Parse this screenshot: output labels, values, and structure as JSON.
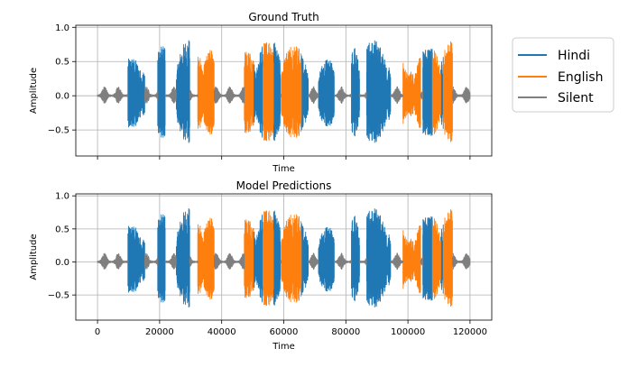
{
  "chart_data": [
    {
      "type": "line",
      "title": "Ground Truth",
      "xlabel": "Time",
      "ylabel": "Amplitude",
      "xlim": [
        -7000,
        127000
      ],
      "ylim": [
        -0.88,
        1.03
      ],
      "xticks": [
        0,
        20000,
        40000,
        60000,
        80000,
        100000,
        120000
      ],
      "xtick_labels_shown": false,
      "yticks": [
        1.0,
        0.5,
        0.0,
        -0.5
      ],
      "ytick_labels": [
        "1.0",
        "0.5",
        "0.0",
        "−0.5"
      ],
      "grid": true,
      "series": [
        {
          "name": "Hindi",
          "color": "#1f77b4",
          "segments": [
            [
              9800,
              15200
            ],
            [
              19400,
              21800
            ],
            [
              25400,
              29700
            ],
            [
              50200,
              53300
            ],
            [
              56700,
              58900
            ],
            [
              65700,
              67900
            ],
            [
              71200,
              76300
            ],
            [
              81800,
              84400
            ],
            [
              86700,
              94400
            ],
            [
              104800,
              107900
            ],
            [
              110600,
              111400
            ]
          ]
        },
        {
          "name": "English",
          "color": "#ff7f0e",
          "segments": [
            [
              32300,
              37600
            ],
            [
              47300,
              50200
            ],
            [
              53300,
              56700
            ],
            [
              59200,
              65700
            ],
            [
              98400,
              104100
            ],
            [
              107900,
              110600
            ],
            [
              111400,
              114400
            ]
          ]
        },
        {
          "name": "Silent",
          "color": "#7f7f7f",
          "segments": [
            [
              0,
              9800
            ],
            [
              15200,
              19400
            ],
            [
              21800,
              25400
            ],
            [
              29700,
              32300
            ],
            [
              37600,
              47300
            ],
            [
              58900,
              59200
            ],
            [
              67900,
              71200
            ],
            [
              76300,
              81800
            ],
            [
              84400,
              86700
            ],
            [
              94400,
              98400
            ],
            [
              104100,
              104800
            ],
            [
              114400,
              120000
            ]
          ]
        }
      ]
    },
    {
      "type": "line",
      "title": "Model Predictions",
      "xlabel": "Time",
      "ylabel": "Amplitude",
      "xlim": [
        -7000,
        127000
      ],
      "ylim": [
        -0.88,
        1.03
      ],
      "xticks": [
        0,
        20000,
        40000,
        60000,
        80000,
        100000,
        120000
      ],
      "xtick_labels": [
        "0",
        "20000",
        "40000",
        "60000",
        "80000",
        "100000",
        "120000"
      ],
      "yticks": [
        1.0,
        0.5,
        0.0,
        -0.5
      ],
      "ytick_labels": [
        "1.0",
        "0.5",
        "0.0",
        "−0.5"
      ],
      "grid": true,
      "series": [
        {
          "name": "Hindi",
          "color": "#1f77b4",
          "segments": [
            [
              9800,
              15200
            ],
            [
              19400,
              21800
            ],
            [
              25400,
              29700
            ],
            [
              50200,
              53300
            ],
            [
              56700,
              58900
            ],
            [
              65700,
              67900
            ],
            [
              71200,
              76300
            ],
            [
              81800,
              84400
            ],
            [
              86700,
              94400
            ],
            [
              104800,
              107900
            ],
            [
              110600,
              111400
            ]
          ]
        },
        {
          "name": "English",
          "color": "#ff7f0e",
          "segments": [
            [
              32300,
              37600
            ],
            [
              47300,
              50200
            ],
            [
              53300,
              56700
            ],
            [
              59200,
              65700
            ],
            [
              98400,
              104100
            ],
            [
              107900,
              110600
            ],
            [
              111400,
              114400
            ]
          ]
        },
        {
          "name": "Silent",
          "color": "#7f7f7f",
          "segments": [
            [
              0,
              9800
            ],
            [
              15200,
              19400
            ],
            [
              21800,
              25400
            ],
            [
              29700,
              32300
            ],
            [
              37600,
              47300
            ],
            [
              58900,
              59200
            ],
            [
              67900,
              71200
            ],
            [
              76300,
              81800
            ],
            [
              84400,
              86700
            ],
            [
              94400,
              98400
            ],
            [
              104100,
              104800
            ],
            [
              114400,
              120000
            ]
          ]
        }
      ]
    }
  ],
  "legend": {
    "placement": "right",
    "items": [
      {
        "label": "Hindi",
        "color": "#1f77b4"
      },
      {
        "label": "English",
        "color": "#ff7f0e"
      },
      {
        "label": "Silent",
        "color": "#7f7f7f"
      }
    ]
  }
}
